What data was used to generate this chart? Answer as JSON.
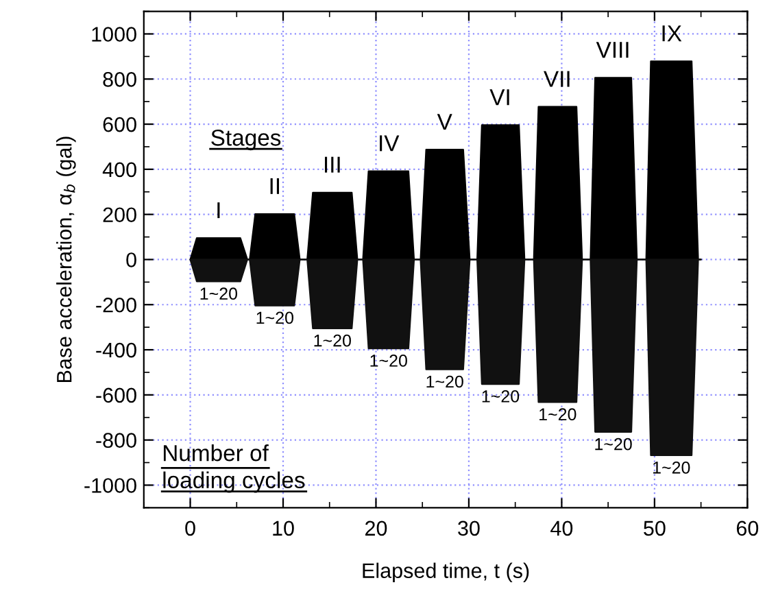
{
  "chart_data": {
    "type": "area",
    "xlabel": "Elapsed time, t (s)",
    "ylabel": "Base acceleration, α$_{b}$ (gal)",
    "x": [
      0,
      0.7,
      5.4,
      6.15,
      6.4,
      7.0,
      11.2,
      11.8,
      12.6,
      13.2,
      17.4,
      18.0,
      18.6,
      19.2,
      23.5,
      24.1,
      24.8,
      25.4,
      29.4,
      30.1,
      30.9,
      31.4,
      35.4,
      36.0,
      37.0,
      37.5,
      41.6,
      42.2,
      43.1,
      43.6,
      47.5,
      48.1,
      49.1,
      49.6,
      54.0,
      54.7,
      55
    ],
    "series": [
      {
        "color": "#000000",
        "values": [
          0,
          95,
          95,
          0,
          0,
          202,
          202,
          0,
          0,
          297,
          297,
          0,
          0,
          392,
          392,
          0,
          0,
          487,
          487,
          0,
          0,
          596,
          596,
          0,
          0,
          677,
          677,
          0,
          0,
          806,
          806,
          0,
          0,
          879,
          879,
          0,
          0
        ]
      },
      {
        "color": "#111111",
        "values": [
          0,
          -97,
          -97,
          0,
          0,
          -204,
          -204,
          0,
          0,
          -305,
          -305,
          0,
          0,
          -394,
          -394,
          0,
          0,
          -487,
          -487,
          0,
          0,
          -552,
          -552,
          0,
          0,
          -632,
          -632,
          0,
          0,
          -764,
          -764,
          0,
          0,
          -868,
          -868,
          0,
          0
        ]
      }
    ],
    "xlim": [
      -5,
      60
    ],
    "xticks": [
      0,
      10,
      20,
      30,
      40,
      50,
      60
    ],
    "ylim": [
      -1100,
      1100
    ],
    "yticks": [
      -1000,
      -800,
      -600,
      -400,
      -200,
      0,
      200,
      400,
      600,
      800,
      1000
    ],
    "grid": true,
    "annotations": [
      "Stages",
      "Number of\nloading cycles",
      "I",
      "II",
      "III",
      "IV",
      "V",
      "VI",
      "VII",
      "VIII",
      "IX",
      "1~20",
      "1~20",
      "1~20",
      "1~20",
      "1~20",
      "1~20",
      "1~20",
      "1~20",
      "1~20"
    ]
  }
}
